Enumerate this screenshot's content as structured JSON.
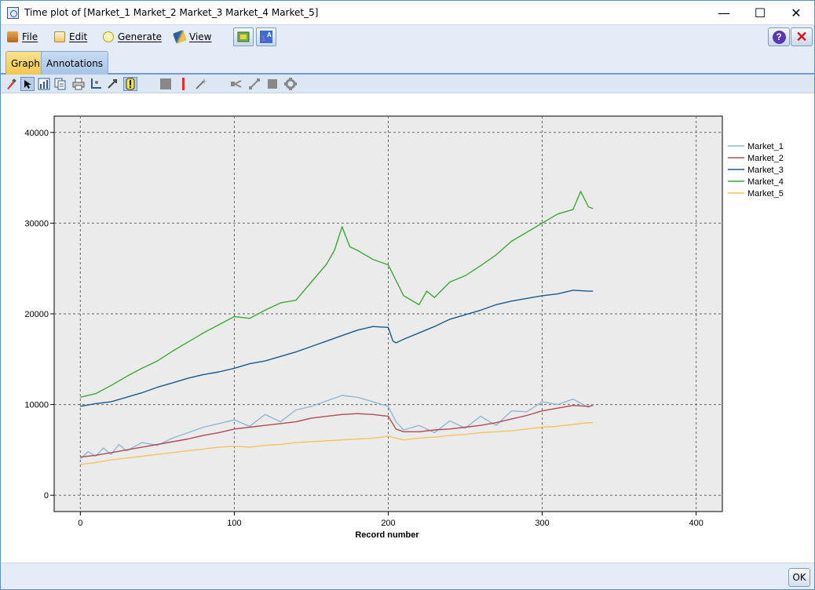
{
  "window": {
    "title": "Time plot of [Market_1 Market_2 Market_3 Market_4 Market_5]",
    "minimize_glyph": "—",
    "maximize_glyph": "☐",
    "close_glyph": "✕"
  },
  "menu": {
    "items": [
      {
        "label": "File",
        "icon": "file-icon"
      },
      {
        "label": "Edit",
        "icon": "edit-icon"
      },
      {
        "label": "Generate",
        "icon": "generate-icon"
      },
      {
        "label": "View",
        "icon": "view-icon"
      }
    ],
    "help_glyph": "?",
    "close_glyph": "✕"
  },
  "tabs": [
    {
      "label": "Graph",
      "active": true
    },
    {
      "label": "Annotations",
      "active": false
    }
  ],
  "graph_toolbar": {
    "tools": [
      "paintbrush-icon",
      "pointer-icon",
      "chart-type-icon",
      "copy-icon",
      "print-icon",
      "axis-icon",
      "move-icon",
      "tooltip-icon",
      "square-icon",
      "line-marker-icon",
      "sparkle-icon",
      "connector-icon",
      "diagonal-icon",
      "fill-square-icon",
      "settings-icon"
    ]
  },
  "chart_data": {
    "type": "line",
    "xlabel": "Record number",
    "ylabel": "",
    "xlim": [
      -17,
      417
    ],
    "ylim": [
      -1800,
      41800
    ],
    "xticks": [
      0,
      100,
      200,
      300,
      400
    ],
    "yticks": [
      0,
      10000,
      20000,
      30000,
      40000
    ],
    "grid": true,
    "legend": "right",
    "series": [
      {
        "name": "Market_1",
        "color": "#8eb8d6",
        "x": [
          0,
          5,
          10,
          15,
          20,
          25,
          30,
          40,
          50,
          60,
          70,
          80,
          90,
          100,
          110,
          120,
          130,
          140,
          150,
          160,
          170,
          180,
          190,
          200,
          205,
          210,
          220,
          230,
          240,
          250,
          260,
          270,
          280,
          290,
          300,
          310,
          320,
          330,
          333
        ],
        "y": [
          4000,
          4800,
          4300,
          5200,
          4500,
          5600,
          4900,
          5800,
          5500,
          6300,
          6900,
          7500,
          7900,
          8300,
          7600,
          8900,
          8100,
          9400,
          9800,
          10400,
          11000,
          10800,
          10300,
          9800,
          8100,
          7200,
          7700,
          6900,
          8200,
          7400,
          8700,
          7700,
          9300,
          9200,
          10300,
          10000,
          10600,
          9700,
          10000
        ]
      },
      {
        "name": "Market_2",
        "color": "#b04a55",
        "x": [
          0,
          10,
          20,
          30,
          40,
          50,
          60,
          70,
          80,
          90,
          100,
          110,
          120,
          130,
          140,
          150,
          160,
          170,
          180,
          190,
          200,
          205,
          210,
          220,
          230,
          240,
          250,
          260,
          270,
          280,
          290,
          300,
          310,
          320,
          330,
          333
        ],
        "y": [
          4200,
          4400,
          4700,
          5000,
          5300,
          5600,
          5900,
          6200,
          6600,
          6900,
          7300,
          7500,
          7700,
          7900,
          8100,
          8500,
          8700,
          8900,
          9000,
          8900,
          8700,
          7300,
          7000,
          7000,
          7200,
          7300,
          7500,
          7700,
          8000,
          8400,
          8800,
          9300,
          9600,
          9900,
          9800,
          9900
        ]
      },
      {
        "name": "Market_3",
        "color": "#1a5a8e",
        "x": [
          0,
          10,
          20,
          30,
          40,
          50,
          60,
          70,
          80,
          90,
          100,
          110,
          120,
          130,
          140,
          150,
          160,
          170,
          180,
          190,
          200,
          203,
          205,
          210,
          220,
          230,
          240,
          250,
          260,
          270,
          280,
          290,
          300,
          310,
          320,
          330,
          333
        ],
        "y": [
          9800,
          10100,
          10300,
          10800,
          11300,
          11900,
          12400,
          12900,
          13300,
          13600,
          14000,
          14500,
          14800,
          15300,
          15800,
          16400,
          17000,
          17600,
          18200,
          18600,
          18500,
          17000,
          16800,
          17200,
          17900,
          18600,
          19400,
          19900,
          20400,
          21000,
          21400,
          21700,
          22000,
          22200,
          22600,
          22500,
          22500
        ]
      },
      {
        "name": "Market_4",
        "color": "#3caa35",
        "x": [
          0,
          10,
          20,
          30,
          40,
          50,
          60,
          70,
          80,
          90,
          100,
          110,
          120,
          130,
          140,
          150,
          160,
          165,
          170,
          175,
          180,
          190,
          200,
          210,
          220,
          225,
          230,
          240,
          250,
          260,
          270,
          280,
          290,
          300,
          310,
          320,
          325,
          330,
          333
        ],
        "y": [
          10800,
          11200,
          12100,
          13100,
          14000,
          14800,
          15900,
          16900,
          17900,
          18800,
          19700,
          19500,
          20400,
          21200,
          21500,
          23500,
          25500,
          27000,
          29600,
          27400,
          27000,
          26000,
          25400,
          22000,
          21000,
          22500,
          21800,
          23500,
          24200,
          25300,
          26500,
          28000,
          29000,
          30000,
          31000,
          31500,
          33500,
          31800,
          31600
        ]
      },
      {
        "name": "Market_5",
        "color": "#f7c35a",
        "x": [
          0,
          10,
          20,
          30,
          40,
          50,
          60,
          70,
          80,
          90,
          100,
          110,
          120,
          130,
          140,
          150,
          160,
          170,
          180,
          190,
          200,
          210,
          220,
          230,
          240,
          250,
          260,
          270,
          280,
          290,
          300,
          310,
          320,
          330,
          333
        ],
        "y": [
          3400,
          3600,
          3900,
          4100,
          4300,
          4500,
          4700,
          4900,
          5100,
          5300,
          5400,
          5300,
          5500,
          5600,
          5800,
          5900,
          6000,
          6100,
          6200,
          6300,
          6500,
          6100,
          6300,
          6400,
          6600,
          6700,
          6900,
          7000,
          7100,
          7300,
          7500,
          7600,
          7800,
          8000,
          8000
        ]
      }
    ]
  },
  "footer": {
    "ok_label": "OK"
  }
}
